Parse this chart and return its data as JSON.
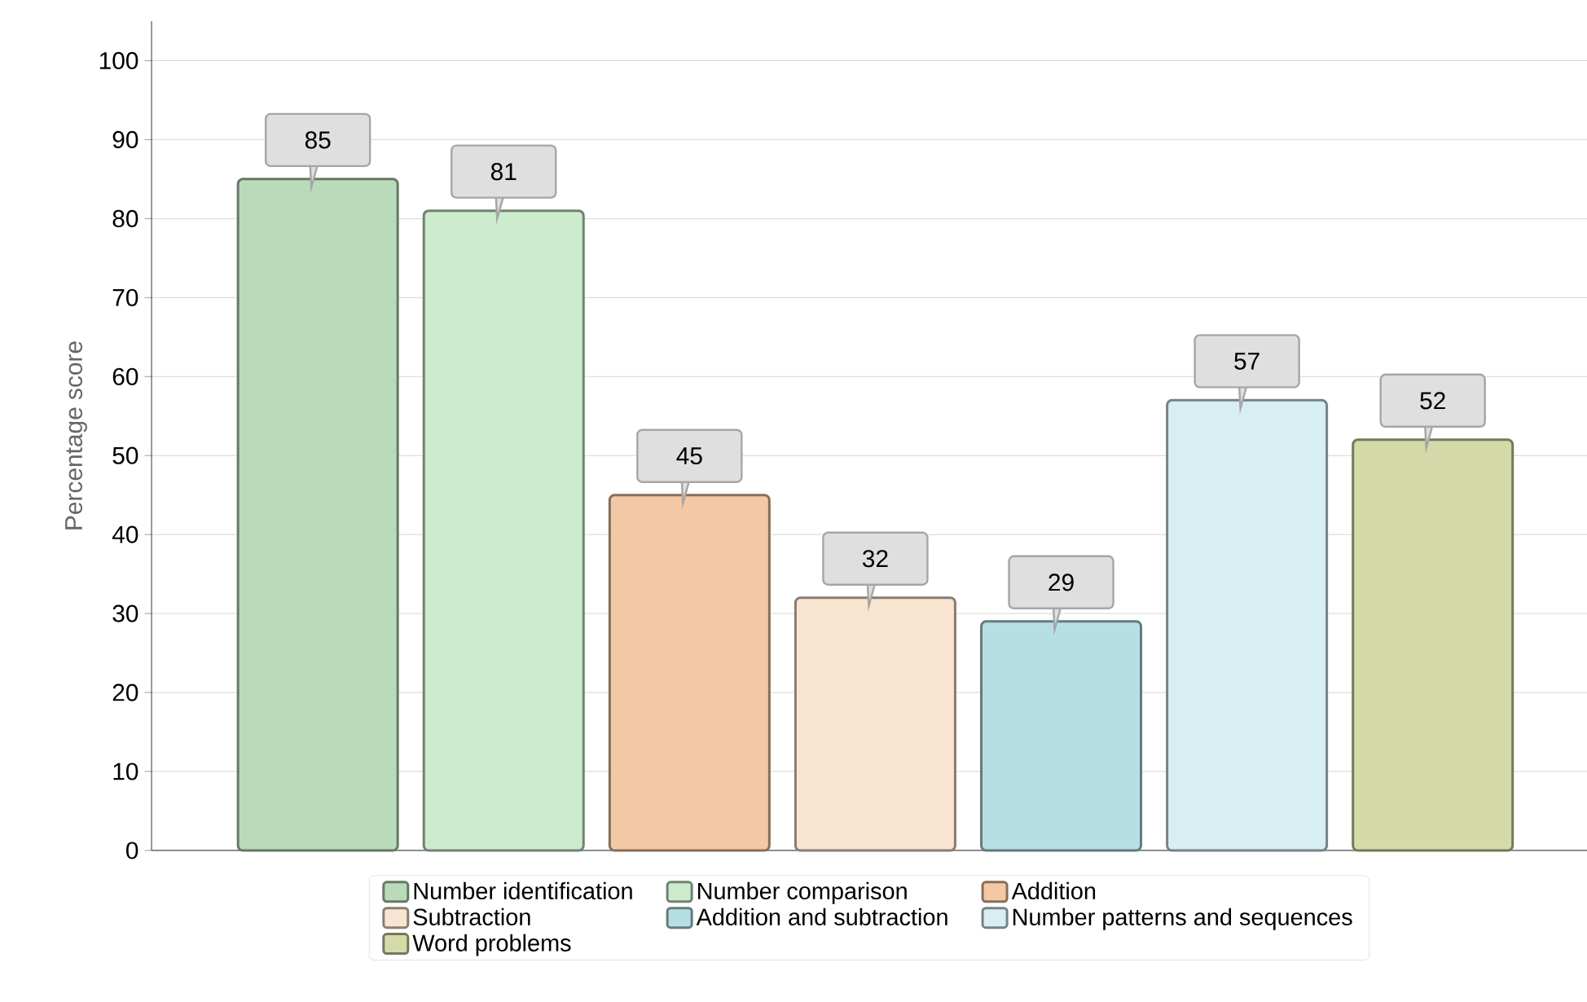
{
  "chart_data": {
    "type": "bar",
    "categories": [
      null,
      null,
      null,
      null,
      null,
      null,
      null
    ],
    "series": [
      {
        "name": "Number identification",
        "color": "#b9dbb9",
        "values": [
          85,
          null,
          null,
          null,
          null,
          null,
          null
        ]
      },
      {
        "name": "Number comparison",
        "color": "#cdeccd",
        "values": [
          null,
          81,
          null,
          null,
          null,
          null,
          null
        ]
      },
      {
        "name": "Addition",
        "color": "#f4c8a4",
        "values": [
          null,
          null,
          45,
          null,
          null,
          null,
          null
        ]
      },
      {
        "name": "Subtraction",
        "color": "#f9e3d1",
        "values": [
          null,
          null,
          null,
          32,
          null,
          null,
          null
        ]
      },
      {
        "name": "Addition and subtraction",
        "color": "#b5dfe4",
        "values": [
          null,
          null,
          null,
          null,
          29,
          null,
          null
        ]
      },
      {
        "name": "Number patterns and sequences",
        "color": "#d7eef3",
        "values": [
          null,
          null,
          null,
          null,
          null,
          57,
          null
        ]
      },
      {
        "name": "Word problems",
        "color": "#d5dba8",
        "values": [
          null,
          null,
          null,
          null,
          null,
          null,
          52
        ]
      }
    ],
    "ylabel": "Percentage score",
    "ylim": [
      0,
      105
    ],
    "yticks": [
      0,
      10,
      20,
      30,
      40,
      50,
      60,
      70,
      80,
      90,
      100
    ],
    "grid": "y",
    "legend": "bottom",
    "tick_labels": "y",
    "data_labels": true
  }
}
